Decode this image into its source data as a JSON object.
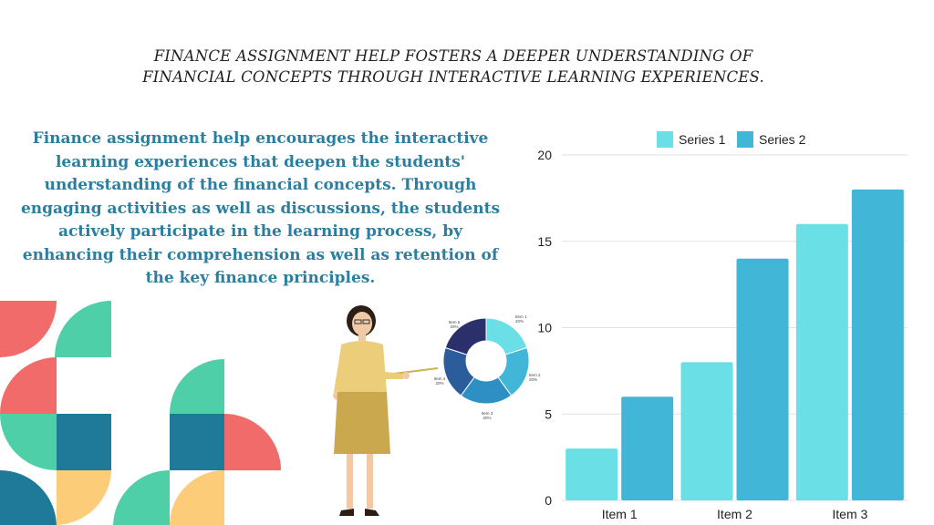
{
  "title": "FINANCE ASSIGNMENT HELP FOSTERS A DEEPER UNDERSTANDING OF FINANCIAL CONCEPTS THROUGH INTERACTIVE LEARNING EXPERIENCES.",
  "paragraph": "Finance assignment help encourages the interactive learning experiences that deepen the students' understanding of the financial concepts. Through engaging activities as well as discussions, the students actively participate in the learning process, by enhancing their comprehension as well as retention of the key finance principles.",
  "colors": {
    "series1": "#6ae0e6",
    "series2": "#41b6d6",
    "paragraph": "#2a7fa0",
    "coral": "#f26b6b",
    "mint": "#4ecfa8",
    "teal": "#1f7a99",
    "yellow": "#fdcc78"
  },
  "donut": {
    "labels": [
      {
        "name": "Item 1",
        "pct": "20%"
      },
      {
        "name": "Item 2",
        "pct": "20%"
      },
      {
        "name": "Item 3",
        "pct": "20%"
      },
      {
        "name": "Item 4",
        "pct": "20%"
      },
      {
        "name": "Item 5",
        "pct": "20%"
      }
    ],
    "colors": [
      "#6ae0e6",
      "#41b6d6",
      "#2e8fc4",
      "#2b5c9c",
      "#2b2f6b"
    ],
    "values": [
      20,
      20,
      20,
      20,
      20
    ]
  },
  "chart_data": {
    "type": "bar",
    "categories": [
      "Item 1",
      "Item 2",
      "Item 3"
    ],
    "series": [
      {
        "name": "Series 1",
        "values": [
          3,
          8,
          16
        ]
      },
      {
        "name": "Series 2",
        "values": [
          6,
          14,
          18
        ]
      }
    ],
    "ylim": [
      0,
      20
    ],
    "yticks": [
      0,
      5,
      10,
      15,
      20
    ],
    "grid": true,
    "legend": "top"
  }
}
